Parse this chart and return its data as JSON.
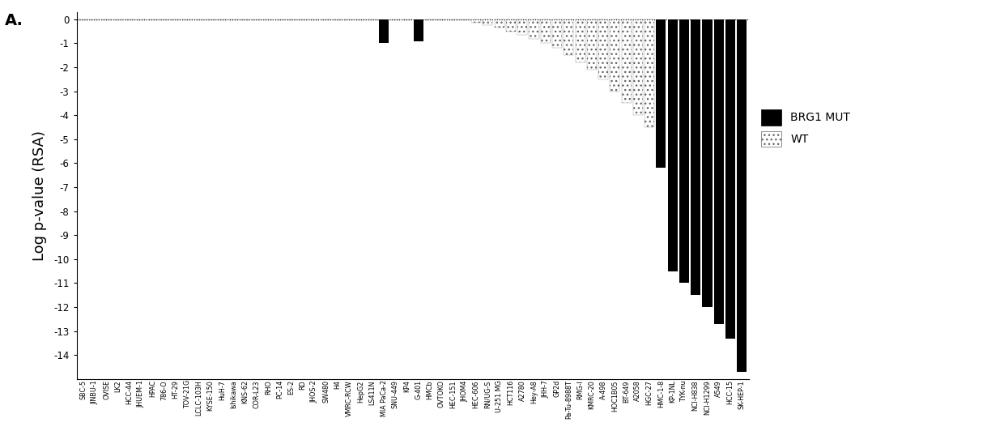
{
  "categories": [
    "SBC-5",
    "JINBU-1",
    "OVISE",
    "LK2",
    "HCC-44",
    "JHUEM-1",
    "HPAC",
    "786-O",
    "HT-29",
    "TOV-21G",
    "LCLC-103H",
    "KYSE-150",
    "HuH-7",
    "Ishikawa",
    "KNS-62",
    "COR-L23",
    "RHO",
    "PC-14",
    "ES-2",
    "RD",
    "JHOS-2",
    "SW480",
    "H4",
    "VMRC-RCW",
    "HepG2",
    "LS411N",
    "MIA PaCa-2",
    "SNU-449",
    "KP4",
    "G-401",
    "HMCb",
    "OVTOKO",
    "HEC-151",
    "JHOM4",
    "HEC-606",
    "RN/UG-S",
    "U-251 MG",
    "HCT116",
    "A2780",
    "Hey-A8",
    "JHH-7",
    "GP2d",
    "Pa-Tu-8988T",
    "RMG-I",
    "KMRC-20",
    "A-498",
    "HOC1B05",
    "BT-649",
    "A2058",
    "HGC-27",
    "HMC-1-8",
    "KP-1NL",
    "TYK-nu",
    "NCI-H838",
    "NCI-H1299",
    "A549",
    "HCC-15",
    "SK-HEP-1"
  ],
  "values": [
    -0.03,
    -0.03,
    -0.03,
    -0.03,
    -0.03,
    -0.03,
    -0.03,
    -0.03,
    -0.03,
    -0.03,
    -0.03,
    -0.03,
    -0.03,
    -0.03,
    -0.03,
    -0.03,
    -0.03,
    -0.03,
    -0.03,
    -0.03,
    -0.03,
    -0.03,
    -0.03,
    -0.03,
    -0.03,
    -0.03,
    -1.0,
    -0.03,
    -0.03,
    -0.9,
    -0.03,
    -0.03,
    -0.03,
    -0.03,
    -0.15,
    -0.25,
    -0.35,
    -0.5,
    -0.65,
    -0.8,
    -1.0,
    -1.2,
    -1.5,
    -1.8,
    -2.1,
    -2.5,
    -3.0,
    -3.5,
    -4.0,
    -4.5,
    -6.2,
    -10.5,
    -11.0,
    -11.5,
    -12.0,
    -12.7,
    -13.3,
    -14.7
  ],
  "is_brg1_mut": [
    false,
    false,
    false,
    false,
    false,
    false,
    false,
    false,
    false,
    false,
    false,
    false,
    false,
    false,
    false,
    false,
    false,
    false,
    false,
    false,
    false,
    false,
    false,
    false,
    false,
    false,
    true,
    false,
    false,
    true,
    false,
    false,
    false,
    false,
    false,
    false,
    false,
    false,
    false,
    false,
    false,
    false,
    false,
    false,
    false,
    false,
    false,
    false,
    false,
    false,
    true,
    true,
    true,
    true,
    true,
    true,
    true,
    true
  ],
  "ylabel": "Log p-value (RSA)",
  "ylim": [
    -15,
    0.3
  ],
  "yticks": [
    0,
    -1,
    -2,
    -3,
    -4,
    -5,
    -6,
    -7,
    -8,
    -9,
    -10,
    -11,
    -12,
    -13,
    -14
  ],
  "title_label": "A.",
  "legend_brg1_label": "BRG1 MUT",
  "legend_wt_label": "WT",
  "bar_color_mut": "#000000",
  "bg_color": "#ffffff",
  "hatch_pattern": "..."
}
